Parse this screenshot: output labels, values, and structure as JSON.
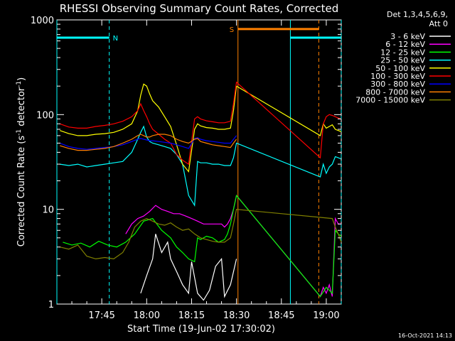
{
  "chart_data": {
    "type": "line",
    "title": "RHESSI Observing Summary Count Rates, Corrected",
    "xlabel": "Start Time (19-Jun-02 17:30:02)",
    "ylabel_main": "Corrected Count Rate (s",
    "ylabel_sup1": "-1",
    "ylabel_mid": " detector",
    "ylabel_sup2": "-1",
    "ylabel_end": ")",
    "y_scale": "log",
    "xlim_minutes": [
      0,
      95
    ],
    "ylim": [
      1,
      1000
    ],
    "x_ticks": [
      {
        "minute": 15,
        "label": "17:45"
      },
      {
        "minute": 30,
        "label": "18:00"
      },
      {
        "minute": 45,
        "label": "18:15"
      },
      {
        "minute": 60,
        "label": "18:30"
      },
      {
        "minute": 75,
        "label": "18:45"
      },
      {
        "minute": 90,
        "label": "19:00"
      }
    ],
    "y_ticks": [
      {
        "value": 1,
        "label": "1"
      },
      {
        "value": 10,
        "label": "10"
      },
      {
        "value": 100,
        "label": "100"
      },
      {
        "value": 1000,
        "label": "1000"
      }
    ],
    "legend_header": [
      "Det 1,3,4,5,6,9,",
      "Att 0"
    ],
    "legend_position": "right",
    "series": [
      {
        "name": "3 - 6 keV",
        "color": "#ffffff",
        "x": [
          28,
          30,
          32,
          33,
          35,
          37,
          38,
          40,
          42,
          44,
          45,
          47,
          49,
          51,
          53,
          55,
          56,
          58,
          60
        ],
        "y": [
          1.3,
          2.0,
          3.0,
          5.5,
          3.5,
          4.5,
          3.0,
          2.2,
          1.6,
          1.3,
          2.8,
          1.3,
          1.1,
          1.4,
          2.5,
          3.0,
          1.2,
          1.6,
          3.0
        ]
      },
      {
        "name": "6 - 12 keV",
        "color": "#ff00ff",
        "x": [
          23,
          25,
          27,
          29,
          31,
          33,
          35,
          37,
          39,
          41,
          43,
          45,
          47,
          49,
          51,
          53,
          55,
          56,
          57,
          58,
          59,
          60,
          88,
          89,
          90,
          91,
          92,
          93,
          94,
          95
        ],
        "y": [
          5.5,
          7.0,
          8.0,
          8.5,
          9.5,
          11.0,
          10.0,
          9.5,
          9.0,
          9.0,
          8.5,
          8.0,
          7.5,
          7.0,
          7.0,
          7.0,
          7.0,
          6.5,
          7.0,
          8.0,
          10.0,
          14.0,
          1.2,
          1.5,
          1.3,
          1.6,
          1.2,
          8.0,
          7.0,
          7.0
        ]
      },
      {
        "name": "12 - 25 keV",
        "color": "#00ff00",
        "x": [
          2,
          5,
          8,
          11,
          14,
          17,
          20,
          23,
          26,
          29,
          32,
          35,
          38,
          40,
          42,
          44,
          46,
          47,
          48,
          50,
          52,
          54,
          56,
          57,
          58,
          59,
          60,
          88,
          90,
          92,
          93,
          94,
          95
        ],
        "y": [
          4.5,
          4.2,
          4.4,
          4.0,
          4.6,
          4.2,
          4.0,
          4.5,
          5.5,
          7.5,
          8.0,
          6.0,
          5.0,
          4.0,
          3.5,
          3.0,
          2.8,
          5.0,
          4.8,
          5.2,
          5.0,
          4.5,
          4.8,
          5.5,
          7.0,
          10.0,
          14.0,
          1.2,
          1.5,
          1.3,
          6.0,
          5.5,
          5.2
        ]
      },
      {
        "name": "25 - 50 keV",
        "color": "#00ffff",
        "x": [
          1,
          4,
          7,
          10,
          13,
          16,
          19,
          22,
          25,
          27,
          28,
          29,
          30,
          31,
          32,
          34,
          36,
          38,
          40,
          42,
          44,
          46,
          47,
          48,
          50,
          52,
          54,
          56,
          58,
          59,
          60,
          88,
          89,
          90,
          91,
          92,
          93,
          94,
          95
        ],
        "y": [
          30,
          29,
          30,
          28,
          29,
          30,
          31,
          32,
          40,
          55,
          65,
          75,
          58,
          52,
          50,
          48,
          46,
          44,
          38,
          30,
          14,
          11,
          32,
          31,
          31,
          30,
          30,
          29,
          29,
          35,
          50,
          22,
          30,
          24,
          28,
          30,
          36,
          35,
          34
        ]
      },
      {
        "name": "50 - 100 keV",
        "color": "#ffff00",
        "x": [
          1,
          4,
          7,
          10,
          13,
          16,
          19,
          22,
          25,
          27,
          28,
          29,
          30,
          31,
          32,
          34,
          36,
          38,
          40,
          42,
          44,
          46,
          47,
          48,
          50,
          52,
          54,
          56,
          58,
          59,
          60,
          88,
          89,
          90,
          91,
          92,
          93,
          94,
          95
        ],
        "y": [
          68,
          63,
          60,
          60,
          62,
          63,
          65,
          70,
          80,
          110,
          160,
          210,
          200,
          165,
          140,
          120,
          95,
          75,
          48,
          30,
          25,
          70,
          80,
          76,
          73,
          72,
          70,
          70,
          72,
          110,
          200,
          60,
          80,
          72,
          75,
          78,
          70,
          68,
          66
        ]
      },
      {
        "name": "100 - 300 keV",
        "color": "#ff0000",
        "x": [
          1,
          4,
          7,
          10,
          13,
          16,
          19,
          22,
          25,
          27,
          28,
          29,
          30,
          31,
          32,
          34,
          36,
          38,
          40,
          42,
          44,
          46,
          47,
          48,
          50,
          52,
          54,
          56,
          58,
          59,
          60,
          88,
          89,
          90,
          91,
          92,
          93,
          94,
          95
        ],
        "y": [
          80,
          74,
          72,
          72,
          75,
          77,
          80,
          85,
          95,
          110,
          130,
          110,
          95,
          80,
          70,
          62,
          55,
          50,
          38,
          33,
          30,
          90,
          95,
          90,
          86,
          84,
          82,
          82,
          85,
          130,
          220,
          35,
          80,
          95,
          100,
          98,
          95,
          92,
          90
        ]
      },
      {
        "name": "300 - 800 keV",
        "color": "#0000ff",
        "x": [
          1,
          4,
          7,
          10,
          13,
          16,
          19,
          22,
          25,
          27,
          28,
          29,
          30,
          31,
          32,
          34,
          36,
          38,
          40,
          42,
          44,
          46,
          47,
          48,
          50,
          52,
          54,
          56,
          58,
          59,
          60
        ],
        "y": [
          50,
          46,
          44,
          43,
          44,
          45,
          46,
          48,
          52,
          55,
          56,
          55,
          54,
          53,
          53,
          52,
          51,
          50,
          48,
          46,
          44,
          56,
          57,
          55,
          53,
          52,
          51,
          50,
          50,
          55,
          60
        ]
      },
      {
        "name": "800 - 7000 keV",
        "color": "#ff8000",
        "x": [
          1,
          4,
          7,
          10,
          13,
          16,
          19,
          22,
          25,
          27,
          28,
          29,
          30,
          31,
          32,
          34,
          36,
          38,
          40,
          42,
          44,
          46,
          47,
          48,
          50,
          52,
          54,
          56,
          58,
          59,
          60
        ],
        "y": [
          47,
          44,
          42,
          42,
          43,
          44,
          46,
          50,
          55,
          60,
          62,
          60,
          58,
          58,
          60,
          62,
          62,
          60,
          55,
          52,
          50,
          55,
          56,
          52,
          50,
          48,
          47,
          46,
          45,
          50,
          55
        ]
      },
      {
        "name": "7000 - 15000 keV",
        "color": "#808000",
        "x": [
          1,
          4,
          7,
          10,
          13,
          16,
          19,
          22,
          24,
          26,
          28,
          30,
          32,
          34,
          36,
          38,
          40,
          42,
          44,
          46,
          48,
          50,
          52,
          54,
          56,
          58,
          59,
          60,
          92,
          93,
          94,
          95
        ],
        "y": [
          4.0,
          3.8,
          4.2,
          3.2,
          3.0,
          3.1,
          3.0,
          3.5,
          4.5,
          6.5,
          7.5,
          8.0,
          7.5,
          7.0,
          6.8,
          7.2,
          6.5,
          6.0,
          6.2,
          5.5,
          5.0,
          4.8,
          4.6,
          4.5,
          4.5,
          5.0,
          7.0,
          10.0,
          8.0,
          6.5,
          5.5,
          4.5
        ]
      }
    ],
    "state_bars": [
      {
        "label": "N",
        "color": "#00ffff",
        "start": 0,
        "end": 17.5,
        "level": 650
      },
      {
        "label": "",
        "color": "#00ffff",
        "start": 78,
        "end": 95,
        "level": 650
      },
      {
        "label": "S",
        "color": "#ff8000",
        "start": 60.5,
        "end": 87.5,
        "level": 800
      }
    ],
    "vlines": [
      {
        "minute": 0,
        "color": "#00ffff",
        "dashed": false
      },
      {
        "minute": 17.5,
        "color": "#00ffff",
        "dashed": true
      },
      {
        "minute": 60.5,
        "color": "#ff8000",
        "dashed": false
      },
      {
        "minute": 78,
        "color": "#00ffff",
        "dashed": false
      },
      {
        "minute": 87.5,
        "color": "#ff8000",
        "dashed": true
      },
      {
        "minute": 95,
        "color": "#00ffff",
        "dashed": true
      }
    ]
  },
  "footer_date": "16-Oct-2021 14:13"
}
